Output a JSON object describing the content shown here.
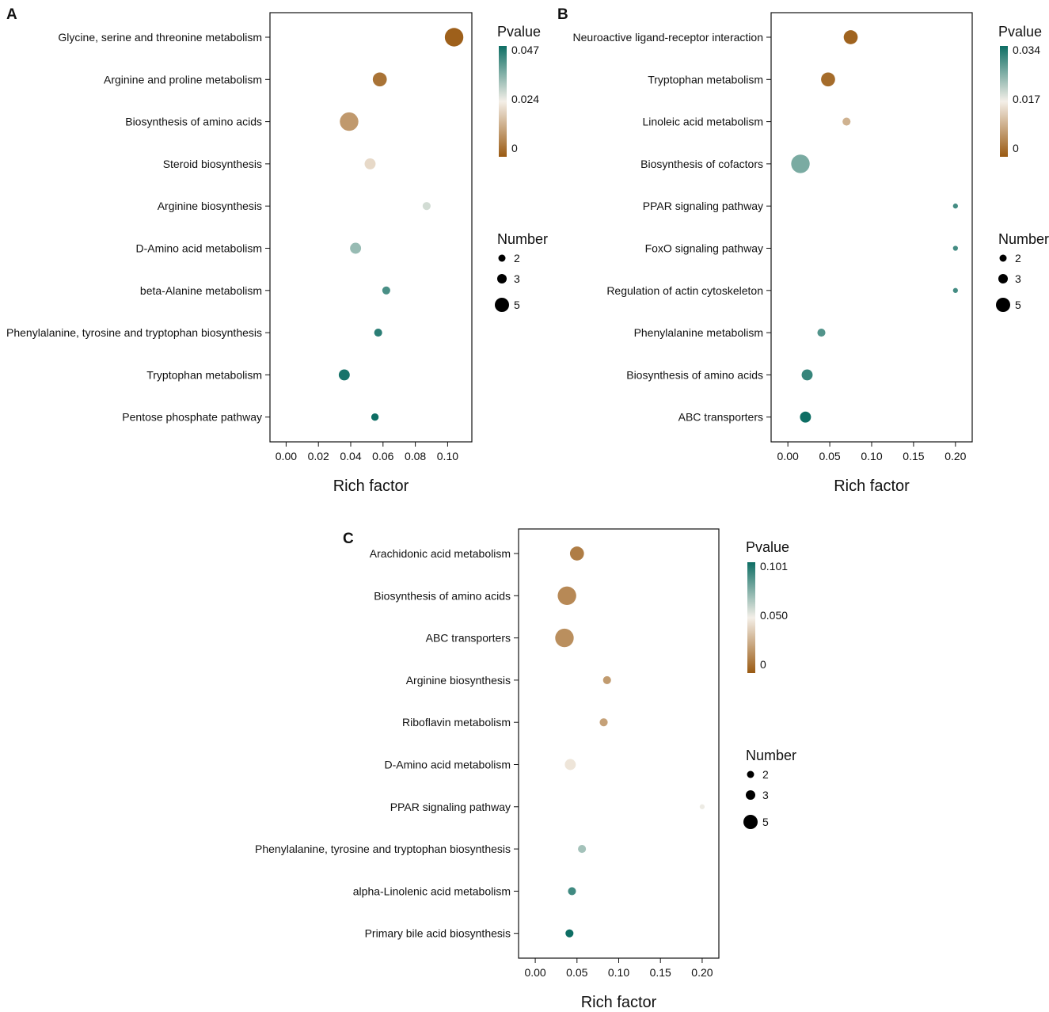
{
  "chart_data": [
    {
      "panel": "A",
      "type": "scatter",
      "xlabel": "Rich factor",
      "xticks": [
        "0.00",
        "0.02",
        "0.04",
        "0.06",
        "0.08",
        "0.10"
      ],
      "xlim": [
        -0.01,
        0.115
      ],
      "categories": [
        "Glycine, serine and threonine metabolism",
        "Arginine and proline metabolism",
        "Biosynthesis of amino acids",
        "Steroid biosynthesis",
        "Arginine biosynthesis",
        "D-Amino acid metabolism",
        "beta-Alanine metabolism",
        "Phenylalanine, tyrosine and tryptophan biosynthesis",
        "Tryptophan metabolism",
        "Pentose phosphate pathway"
      ],
      "points": [
        {
          "x": 0.104,
          "number": 5,
          "pvalue": 0.001
        },
        {
          "x": 0.058,
          "number": 3.5,
          "pvalue": 0.004
        },
        {
          "x": 0.039,
          "number": 5,
          "pvalue": 0.01
        },
        {
          "x": 0.052,
          "number": 2.5,
          "pvalue": 0.02
        },
        {
          "x": 0.087,
          "number": 1.5,
          "pvalue": 0.027
        },
        {
          "x": 0.043,
          "number": 2.5,
          "pvalue": 0.033
        },
        {
          "x": 0.062,
          "number": 1.5,
          "pvalue": 0.041
        },
        {
          "x": 0.057,
          "number": 1.5,
          "pvalue": 0.044
        },
        {
          "x": 0.036,
          "number": 2.5,
          "pvalue": 0.046
        },
        {
          "x": 0.055,
          "number": 1.3,
          "pvalue": 0.047
        }
      ],
      "legend_pvalue": {
        "title": "Pvalue",
        "ticks": [
          "0.047",
          "0.024",
          "0"
        ],
        "max": 0.047
      },
      "legend_number": {
        "title": "Number",
        "entries": [
          "2",
          "3",
          "5"
        ]
      }
    },
    {
      "panel": "B",
      "type": "scatter",
      "xlabel": "Rich factor",
      "xticks": [
        "0.00",
        "0.05",
        "0.10",
        "0.15",
        "0.20"
      ],
      "xlim": [
        -0.02,
        0.22
      ],
      "categories": [
        "Neuroactive ligand-receptor interaction",
        "Tryptophan metabolism",
        "Linoleic acid metabolism",
        "Biosynthesis of cofactors",
        "PPAR signaling pathway",
        "FoxO signaling pathway",
        "Regulation of actin cytoskeleton",
        "Phenylalanine metabolism",
        "Biosynthesis of amino acids",
        "ABC transporters"
      ],
      "points": [
        {
          "x": 0.075,
          "number": 3.5,
          "pvalue": 0.001
        },
        {
          "x": 0.048,
          "number": 3.5,
          "pvalue": 0.002
        },
        {
          "x": 0.07,
          "number": 1.5,
          "pvalue": 0.01
        },
        {
          "x": 0.015,
          "number": 5,
          "pvalue": 0.026
        },
        {
          "x": 0.2,
          "number": 0.5,
          "pvalue": 0.03
        },
        {
          "x": 0.2,
          "number": 0.5,
          "pvalue": 0.03
        },
        {
          "x": 0.2,
          "number": 0.5,
          "pvalue": 0.03
        },
        {
          "x": 0.04,
          "number": 1.5,
          "pvalue": 0.029
        },
        {
          "x": 0.023,
          "number": 2.5,
          "pvalue": 0.031
        },
        {
          "x": 0.021,
          "number": 2.5,
          "pvalue": 0.034
        }
      ],
      "legend_pvalue": {
        "title": "Pvalue",
        "ticks": [
          "0.034",
          "0.017",
          "0"
        ],
        "max": 0.034
      },
      "legend_number": {
        "title": "Number",
        "entries": [
          "2",
          "3",
          "5"
        ]
      }
    },
    {
      "panel": "C",
      "type": "scatter",
      "xlabel": "Rich factor",
      "xticks": [
        "0.00",
        "0.05",
        "0.10",
        "0.15",
        "0.20"
      ],
      "xlim": [
        -0.02,
        0.22
      ],
      "categories": [
        "Arachidonic acid metabolism",
        "Biosynthesis of amino acids",
        "ABC transporters",
        "Arginine biosynthesis",
        "Riboflavin metabolism",
        "D-Amino acid metabolism",
        "PPAR signaling pathway",
        "Phenylalanine, tyrosine and tryptophan biosynthesis",
        "alpha-Linolenic acid metabolism",
        "Primary bile acid biosynthesis"
      ],
      "points": [
        {
          "x": 0.05,
          "number": 3.5,
          "pvalue": 0.012
        },
        {
          "x": 0.038,
          "number": 5,
          "pvalue": 0.016
        },
        {
          "x": 0.035,
          "number": 5,
          "pvalue": 0.018
        },
        {
          "x": 0.086,
          "number": 1.5,
          "pvalue": 0.022
        },
        {
          "x": 0.082,
          "number": 1.5,
          "pvalue": 0.024
        },
        {
          "x": 0.042,
          "number": 2.5,
          "pvalue": 0.047
        },
        {
          "x": 0.2,
          "number": 0.5,
          "pvalue": 0.052
        },
        {
          "x": 0.056,
          "number": 1.5,
          "pvalue": 0.068
        },
        {
          "x": 0.044,
          "number": 1.5,
          "pvalue": 0.09
        },
        {
          "x": 0.041,
          "number": 1.5,
          "pvalue": 0.101
        }
      ],
      "legend_pvalue": {
        "title": "Pvalue",
        "ticks": [
          "0.101",
          "0.050",
          "0"
        ],
        "max": 0.101
      },
      "legend_number": {
        "title": "Number",
        "entries": [
          "2",
          "3",
          "5"
        ]
      }
    }
  ],
  "colors": {
    "low": "#9a5a12",
    "mid": "#f4efe8",
    "high": "#0e6e64"
  }
}
